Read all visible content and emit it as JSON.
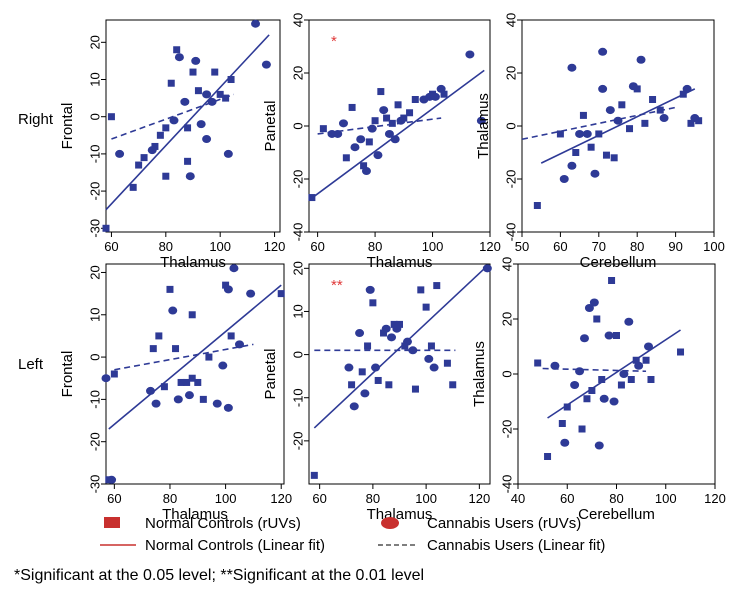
{
  "row_labels": [
    "Right",
    "Left"
  ],
  "legend": {
    "normal_points": "Normal Controls (rUVs)",
    "cannabis_points": "Cannabis Users (rUVs)",
    "normal_fit": "Normal Controls (Linear fit)",
    "cannabis_fit": "Cannabis Users (Linear fit)"
  },
  "footnote": "*Significant at the 0.05 level; **Significant at the 0.01 level",
  "colors": {
    "points": "#2e3a96",
    "fit": "#2e3a96",
    "significance": "#e03a3a",
    "legend_normal_fit": "#c8302e"
  },
  "chart_data": [
    {
      "type": "scatter",
      "row": "Right",
      "xlabel": "Thalamus",
      "ylabel": "Frontal",
      "xlim": [
        58,
        122
      ],
      "ylim": [
        -31,
        26
      ],
      "xticks": [
        60,
        80,
        100,
        120
      ],
      "yticks": [
        -30,
        -20,
        -10,
        0,
        10,
        20
      ],
      "significance": "",
      "normal_fit": [
        [
          58,
          -25
        ],
        [
          118,
          22
        ]
      ],
      "cannabis_fit": [
        [
          60,
          -6
        ],
        [
          105,
          6
        ]
      ],
      "points": [
        [
          58,
          -30
        ],
        [
          60,
          0
        ],
        [
          63,
          -10
        ],
        [
          68,
          -19
        ],
        [
          70,
          -13
        ],
        [
          72,
          -11
        ],
        [
          75,
          -9
        ],
        [
          76,
          -8
        ],
        [
          78,
          -5
        ],
        [
          80,
          -16
        ],
        [
          80,
          -3
        ],
        [
          82,
          9
        ],
        [
          83,
          -1
        ],
        [
          84,
          18
        ],
        [
          85,
          16
        ],
        [
          87,
          4
        ],
        [
          88,
          -12
        ],
        [
          88,
          -3
        ],
        [
          89,
          -16
        ],
        [
          90,
          12
        ],
        [
          91,
          15
        ],
        [
          92,
          7
        ],
        [
          93,
          -2
        ],
        [
          95,
          6
        ],
        [
          95,
          -6
        ],
        [
          97,
          4
        ],
        [
          98,
          12
        ],
        [
          100,
          6
        ],
        [
          102,
          5
        ],
        [
          103,
          -10
        ],
        [
          104,
          10
        ],
        [
          113,
          25
        ],
        [
          117,
          14
        ]
      ]
    },
    {
      "type": "scatter",
      "row": "Right",
      "xlabel": "Thalamus",
      "ylabel": "Panetal",
      "xlim": [
        57,
        120
      ],
      "ylim": [
        -40,
        40
      ],
      "xticks": [
        60,
        80,
        100,
        120
      ],
      "yticks": [
        -40,
        -20,
        0,
        20,
        40
      ],
      "significance": "*",
      "normal_fit": [
        [
          57,
          -28
        ],
        [
          118,
          21
        ]
      ],
      "cannabis_fit": [
        [
          60,
          -3
        ],
        [
          103,
          3
        ]
      ],
      "points": [
        [
          58,
          -27
        ],
        [
          62,
          -1
        ],
        [
          65,
          -3
        ],
        [
          67,
          -3
        ],
        [
          69,
          1
        ],
        [
          70,
          -12
        ],
        [
          72,
          7
        ],
        [
          73,
          -8
        ],
        [
          75,
          -5
        ],
        [
          76,
          -15
        ],
        [
          77,
          -17
        ],
        [
          78,
          -6
        ],
        [
          79,
          -1
        ],
        [
          80,
          2
        ],
        [
          81,
          -11
        ],
        [
          82,
          13
        ],
        [
          83,
          6
        ],
        [
          84,
          3
        ],
        [
          85,
          -3
        ],
        [
          86,
          1
        ],
        [
          87,
          -5
        ],
        [
          88,
          8
        ],
        [
          89,
          2
        ],
        [
          90,
          3
        ],
        [
          92,
          5
        ],
        [
          94,
          10
        ],
        [
          97,
          10
        ],
        [
          99,
          11
        ],
        [
          100,
          12
        ],
        [
          101,
          11
        ],
        [
          103,
          14
        ],
        [
          104,
          12
        ],
        [
          113,
          27
        ],
        [
          117,
          2
        ]
      ]
    },
    {
      "type": "scatter",
      "row": "Right",
      "xlabel": "Cerebellum",
      "ylabel": "Thalamus",
      "xlim": [
        50,
        100
      ],
      "ylim": [
        -40,
        40
      ],
      "xticks": [
        50,
        60,
        70,
        80,
        90,
        100
      ],
      "yticks": [
        -40,
        -20,
        0,
        20,
        40
      ],
      "significance": "",
      "normal_fit": [
        [
          55,
          -14
        ],
        [
          95,
          14
        ]
      ],
      "cannabis_fit": [
        [
          50,
          -5
        ],
        [
          90,
          7
        ]
      ],
      "points": [
        [
          54,
          -30
        ],
        [
          60,
          -3
        ],
        [
          61,
          -20
        ],
        [
          63,
          22
        ],
        [
          63,
          -15
        ],
        [
          64,
          -10
        ],
        [
          65,
          -3
        ],
        [
          66,
          4
        ],
        [
          67,
          -3
        ],
        [
          68,
          -8
        ],
        [
          69,
          -18
        ],
        [
          70,
          -3
        ],
        [
          71,
          28
        ],
        [
          71,
          14
        ],
        [
          72,
          -11
        ],
        [
          73,
          6
        ],
        [
          74,
          -12
        ],
        [
          75,
          2
        ],
        [
          76,
          8
        ],
        [
          78,
          -1
        ],
        [
          79,
          15
        ],
        [
          80,
          14
        ],
        [
          81,
          25
        ],
        [
          82,
          1
        ],
        [
          84,
          10
        ],
        [
          86,
          6
        ],
        [
          87,
          3
        ],
        [
          92,
          12
        ],
        [
          93,
          14
        ],
        [
          94,
          1
        ],
        [
          95,
          3
        ],
        [
          96,
          2
        ]
      ]
    },
    {
      "type": "scatter",
      "row": "Left",
      "xlabel": "Thalamus",
      "ylabel": "Frontal",
      "xlim": [
        57,
        121
      ],
      "ylim": [
        -30,
        22
      ],
      "xticks": [
        60,
        80,
        100,
        120
      ],
      "yticks": [
        -30,
        -20,
        -10,
        0,
        10,
        20
      ],
      "significance": "",
      "normal_fit": [
        [
          58,
          -17
        ],
        [
          120,
          17
        ]
      ],
      "cannabis_fit": [
        [
          60,
          -3
        ],
        [
          110,
          3
        ]
      ],
      "points": [
        [
          57,
          -5
        ],
        [
          58,
          -29
        ],
        [
          59,
          -29
        ],
        [
          60,
          -4
        ],
        [
          73,
          -8
        ],
        [
          74,
          2
        ],
        [
          75,
          -11
        ],
        [
          76,
          5
        ],
        [
          78,
          -7
        ],
        [
          80,
          16
        ],
        [
          81,
          11
        ],
        [
          82,
          2
        ],
        [
          83,
          -10
        ],
        [
          84,
          -6
        ],
        [
          86,
          -6
        ],
        [
          87,
          -9
        ],
        [
          88,
          -5
        ],
        [
          88,
          10
        ],
        [
          90,
          -6
        ],
        [
          92,
          -10
        ],
        [
          94,
          0
        ],
        [
          97,
          -11
        ],
        [
          99,
          -2
        ],
        [
          100,
          17
        ],
        [
          101,
          -12
        ],
        [
          101,
          16
        ],
        [
          102,
          5
        ],
        [
          103,
          21
        ],
        [
          105,
          3
        ],
        [
          109,
          15
        ],
        [
          120,
          15
        ]
      ]
    },
    {
      "type": "scatter",
      "row": "Left",
      "xlabel": "Thalamus",
      "ylabel": "Panetal",
      "xlim": [
        56,
        124
      ],
      "ylim": [
        -30,
        21
      ],
      "xticks": [
        60,
        80,
        100,
        120
      ],
      "yticks": [
        -20,
        -10,
        0,
        10,
        20
      ],
      "significance": "**",
      "normal_fit": [
        [
          58,
          -17
        ],
        [
          122,
          20
        ]
      ],
      "cannabis_fit": [
        [
          58,
          1
        ],
        [
          111,
          1
        ]
      ],
      "points": [
        [
          58,
          -28
        ],
        [
          71,
          -3
        ],
        [
          72,
          -7
        ],
        [
          73,
          -12
        ],
        [
          75,
          5
        ],
        [
          76,
          -4
        ],
        [
          77,
          -9
        ],
        [
          78,
          2
        ],
        [
          79,
          15
        ],
        [
          80,
          12
        ],
        [
          81,
          -3
        ],
        [
          82,
          -6
        ],
        [
          84,
          5
        ],
        [
          85,
          6
        ],
        [
          86,
          -7
        ],
        [
          87,
          4
        ],
        [
          88,
          7
        ],
        [
          89,
          6
        ],
        [
          90,
          7
        ],
        [
          92,
          2
        ],
        [
          93,
          3
        ],
        [
          95,
          1
        ],
        [
          96,
          -8
        ],
        [
          98,
          15
        ],
        [
          100,
          11
        ],
        [
          101,
          -1
        ],
        [
          102,
          2
        ],
        [
          103,
          -3
        ],
        [
          104,
          16
        ],
        [
          108,
          -2
        ],
        [
          110,
          -7
        ],
        [
          123,
          20
        ]
      ]
    },
    {
      "type": "scatter",
      "row": "Left",
      "xlabel": "Cerebellum",
      "ylabel": "Thalamus",
      "xlim": [
        40,
        120
      ],
      "ylim": [
        -40,
        40
      ],
      "xticks": [
        40,
        60,
        80,
        100,
        120
      ],
      "yticks": [
        -40,
        -20,
        0,
        20,
        40
      ],
      "significance": "",
      "normal_fit": [
        [
          52,
          -16
        ],
        [
          106,
          16
        ]
      ],
      "cannabis_fit": [
        [
          50,
          2
        ],
        [
          92,
          1
        ]
      ],
      "points": [
        [
          48,
          4
        ],
        [
          52,
          -30
        ],
        [
          55,
          3
        ],
        [
          58,
          -18
        ],
        [
          59,
          -25
        ],
        [
          60,
          -12
        ],
        [
          63,
          -4
        ],
        [
          65,
          1
        ],
        [
          66,
          -20
        ],
        [
          67,
          13
        ],
        [
          68,
          -9
        ],
        [
          69,
          24
        ],
        [
          70,
          -6
        ],
        [
          71,
          26
        ],
        [
          72,
          20
        ],
        [
          73,
          -26
        ],
        [
          74,
          -2
        ],
        [
          75,
          -9
        ],
        [
          77,
          14
        ],
        [
          78,
          34
        ],
        [
          79,
          -10
        ],
        [
          80,
          14
        ],
        [
          82,
          -4
        ],
        [
          83,
          0
        ],
        [
          85,
          19
        ],
        [
          86,
          -2
        ],
        [
          88,
          5
        ],
        [
          89,
          3
        ],
        [
          92,
          5
        ],
        [
          93,
          10
        ],
        [
          94,
          -2
        ],
        [
          106,
          8
        ]
      ]
    }
  ]
}
